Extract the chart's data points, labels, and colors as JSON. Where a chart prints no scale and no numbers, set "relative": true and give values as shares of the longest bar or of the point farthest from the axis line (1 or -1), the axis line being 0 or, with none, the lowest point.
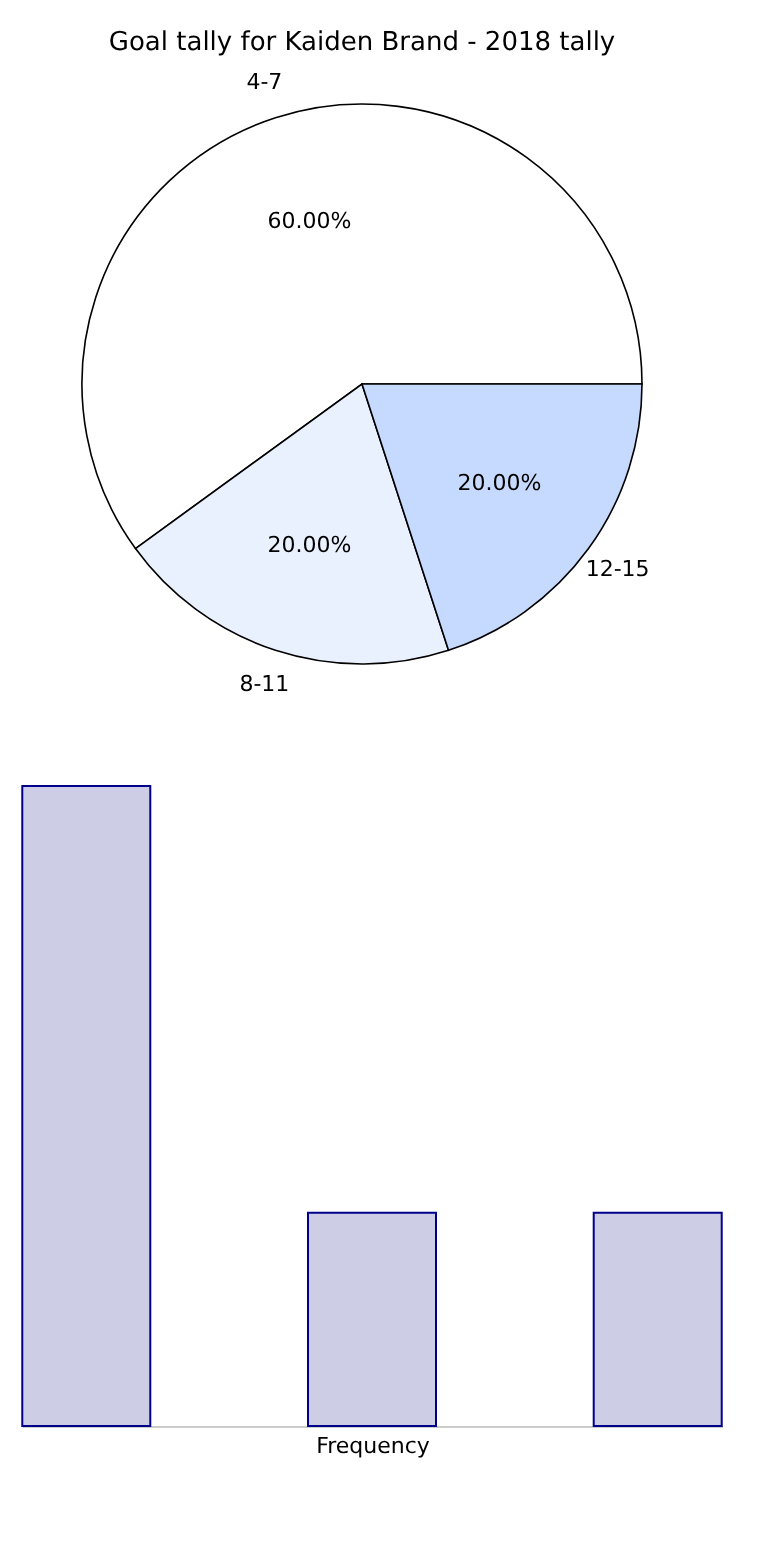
{
  "chart_data": [
    {
      "type": "pie",
      "title": "Goal tally for Kaiden Brand - 2018 tally",
      "categories": [
        "4-7",
        "8-11",
        "12-15"
      ],
      "values": [
        60,
        20,
        20
      ],
      "colors": [
        "#ffffff",
        "#eaf1fe",
        "#c6d9fe"
      ],
      "value_labels": [
        "60.00%",
        "20.00%",
        "20.00%"
      ],
      "legend": false
    },
    {
      "type": "bar",
      "relative": true,
      "categories": [
        null,
        null,
        null
      ],
      "values": [
        1,
        0.3333,
        0.3333
      ],
      "color": "#cdcde6",
      "xlabel": "Frequency",
      "grid": false
    }
  ]
}
